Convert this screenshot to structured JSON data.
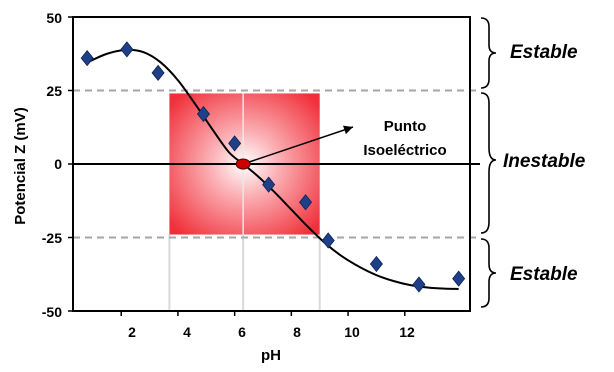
{
  "chart_data": {
    "type": "scatter",
    "xlabel": "pH",
    "ylabel": "Potencial Z (mV)",
    "xlim": [
      0.3,
      14.3
    ],
    "ylim": [
      -50,
      50
    ],
    "xticks": [
      2,
      4,
      6,
      8,
      10,
      12
    ],
    "yticks": [
      50,
      25,
      0,
      -25,
      -50
    ],
    "ytick_labels": [
      "50",
      "25",
      "0",
      "-25",
      "-50"
    ],
    "grid": false,
    "series": [
      {
        "marker": "diamond",
        "color": "#1f3f86",
        "x": [
          0.8,
          2.2,
          3.3,
          4.9,
          6.0,
          7.2,
          8.5,
          9.3,
          11.0,
          12.5,
          13.9
        ],
        "y": [
          36,
          39,
          31,
          17,
          7,
          -7,
          -13,
          -26,
          -34,
          -41,
          -39
        ]
      }
    ],
    "fit_curve": {
      "color": "#000000",
      "x": [
        0.8,
        1.5,
        2.2,
        2.8,
        3.4,
        4.0,
        4.6,
        5.2,
        5.8,
        6.3,
        6.8,
        7.4,
        8.0,
        8.6,
        9.2,
        9.8,
        10.4,
        11.0,
        11.6,
        12.2,
        12.8,
        13.4,
        13.9
      ],
      "y": [
        34.5,
        37.5,
        38.8,
        38.0,
        34.5,
        28.5,
        20.5,
        12.0,
        4.0,
        0.0,
        -4.0,
        -9.5,
        -15.5,
        -21.5,
        -27.0,
        -31.5,
        -35.0,
        -37.8,
        -39.8,
        -41.2,
        -42.0,
        -42.4,
        -42.5
      ]
    },
    "stable_lines": [
      25,
      -25
    ],
    "unstable_zone": {
      "x": [
        3.7,
        9.0
      ],
      "y": [
        -24,
        24
      ],
      "color": "#f0303a"
    },
    "isoelectric_point": {
      "x": 6.3,
      "y": 0,
      "color": "#cc0000"
    },
    "annotations": {
      "point_label_line1": "Punto",
      "point_label_line2": "Isoeléctrico",
      "zone_top": "Estable",
      "zone_middle": "Inestable",
      "zone_bottom": "Estable"
    }
  }
}
